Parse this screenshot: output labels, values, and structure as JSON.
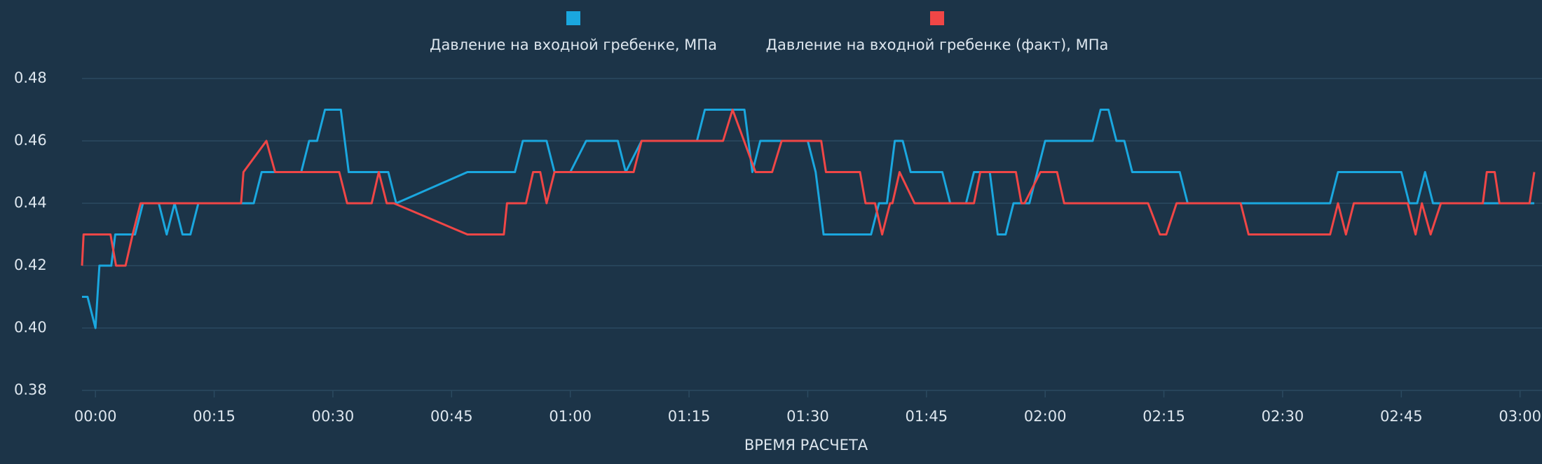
{
  "chart_data": {
    "type": "line",
    "x_label": "ВРЕМЯ РАСЧЕТА",
    "xlim": [
      -1.7,
      181.8
    ],
    "xticks": [
      {
        "value": 0,
        "label": "00:00"
      },
      {
        "value": 15,
        "label": "00:15"
      },
      {
        "value": 30,
        "label": "00:30"
      },
      {
        "value": 45,
        "label": "00:45"
      },
      {
        "value": 60,
        "label": "01:00"
      },
      {
        "value": 75,
        "label": "01:15"
      },
      {
        "value": 90,
        "label": "01:30"
      },
      {
        "value": 105,
        "label": "01:45"
      },
      {
        "value": 120,
        "label": "02:00"
      },
      {
        "value": 135,
        "label": "02:15"
      },
      {
        "value": 150,
        "label": "02:30"
      },
      {
        "value": 165,
        "label": "02:45"
      },
      {
        "value": 180,
        "label": "03:00"
      }
    ],
    "ylim": [
      0.38,
      0.48
    ],
    "yticks": [
      {
        "value": 0.38,
        "label": "0.38"
      },
      {
        "value": 0.4,
        "label": "0.40"
      },
      {
        "value": 0.42,
        "label": "0.42"
      },
      {
        "value": 0.44,
        "label": "0.44"
      },
      {
        "value": 0.46,
        "label": "0.46"
      },
      {
        "value": 0.48,
        "label": "0.48"
      }
    ],
    "grid": true,
    "series": [
      {
        "name": "Давление на входной гребенке, МПа",
        "color": "#1aa7df",
        "x": [
          -1.7,
          -1,
          0,
          0.5,
          2,
          2.5,
          5,
          6,
          8,
          9,
          10,
          11,
          12,
          13,
          20,
          21,
          26,
          27,
          28,
          29,
          31,
          32,
          37,
          38,
          47,
          53,
          54,
          57,
          58,
          60,
          62,
          66,
          67,
          69,
          76,
          77,
          82,
          83,
          84,
          85,
          90,
          91,
          92,
          93,
          98,
          99,
          100,
          101,
          102,
          103,
          107,
          108,
          110,
          111,
          113,
          114,
          115,
          116,
          118,
          120,
          121,
          126,
          127,
          128,
          129,
          130,
          131,
          137,
          138,
          156,
          157,
          165,
          166,
          167,
          168,
          169,
          176,
          177,
          181.8
        ],
        "values": [
          0.41,
          0.41,
          0.4,
          0.42,
          0.42,
          0.43,
          0.43,
          0.44,
          0.44,
          0.43,
          0.44,
          0.43,
          0.43,
          0.44,
          0.44,
          0.45,
          0.45,
          0.46,
          0.46,
          0.47,
          0.47,
          0.45,
          0.45,
          0.44,
          0.45,
          0.45,
          0.46,
          0.46,
          0.45,
          0.45,
          0.46,
          0.46,
          0.45,
          0.46,
          0.46,
          0.47,
          0.47,
          0.45,
          0.46,
          0.46,
          0.46,
          0.45,
          0.43,
          0.43,
          0.43,
          0.44,
          0.44,
          0.46,
          0.46,
          0.45,
          0.45,
          0.44,
          0.44,
          0.45,
          0.45,
          0.43,
          0.43,
          0.44,
          0.44,
          0.46,
          0.46,
          0.46,
          0.47,
          0.47,
          0.46,
          0.46,
          0.45,
          0.45,
          0.44,
          0.44,
          0.45,
          0.45,
          0.44,
          0.44,
          0.45,
          0.44,
          0.44,
          0.44,
          0.44
        ]
      },
      {
        "name": "Давление на входной гребенке (факт), МПа",
        "color": "#f04646",
        "x": [
          -1.7,
          -1.5,
          1.9,
          2.6,
          3.8,
          4.7,
          5.7,
          18.4,
          18.7,
          21.6,
          22.7,
          30.8,
          31.8,
          34.9,
          35.8,
          36.8,
          37.7,
          47,
          51.6,
          52,
          54.4,
          55.3,
          56.2,
          57,
          58,
          68,
          69,
          79.3,
          80.5,
          83.4,
          85.5,
          86.7,
          91.7,
          92.3,
          96.6,
          97.3,
          98.5,
          99.4,
          100.4,
          100.7,
          101.6,
          103.5,
          111,
          111.8,
          116.3,
          117,
          117.4,
          119.4,
          121.5,
          122.4,
          133,
          134.5,
          135.3,
          136.6,
          144.7,
          145.7,
          156,
          157,
          158,
          159,
          165.8,
          166.8,
          167.6,
          168.7,
          170,
          175.3,
          175.8,
          176.8,
          177.4,
          181.2,
          181.8
        ],
        "values": [
          0.42,
          0.43,
          0.43,
          0.42,
          0.42,
          0.43,
          0.44,
          0.44,
          0.45,
          0.46,
          0.45,
          0.45,
          0.44,
          0.44,
          0.45,
          0.44,
          0.44,
          0.43,
          0.43,
          0.44,
          0.44,
          0.45,
          0.45,
          0.44,
          0.45,
          0.45,
          0.46,
          0.46,
          0.47,
          0.45,
          0.45,
          0.46,
          0.46,
          0.45,
          0.45,
          0.44,
          0.44,
          0.43,
          0.44,
          0.44,
          0.45,
          0.44,
          0.44,
          0.45,
          0.45,
          0.44,
          0.44,
          0.45,
          0.45,
          0.44,
          0.44,
          0.43,
          0.43,
          0.44,
          0.44,
          0.43,
          0.43,
          0.44,
          0.43,
          0.44,
          0.44,
          0.43,
          0.44,
          0.43,
          0.44,
          0.44,
          0.45,
          0.45,
          0.44,
          0.44,
          0.45
        ]
      }
    ]
  }
}
